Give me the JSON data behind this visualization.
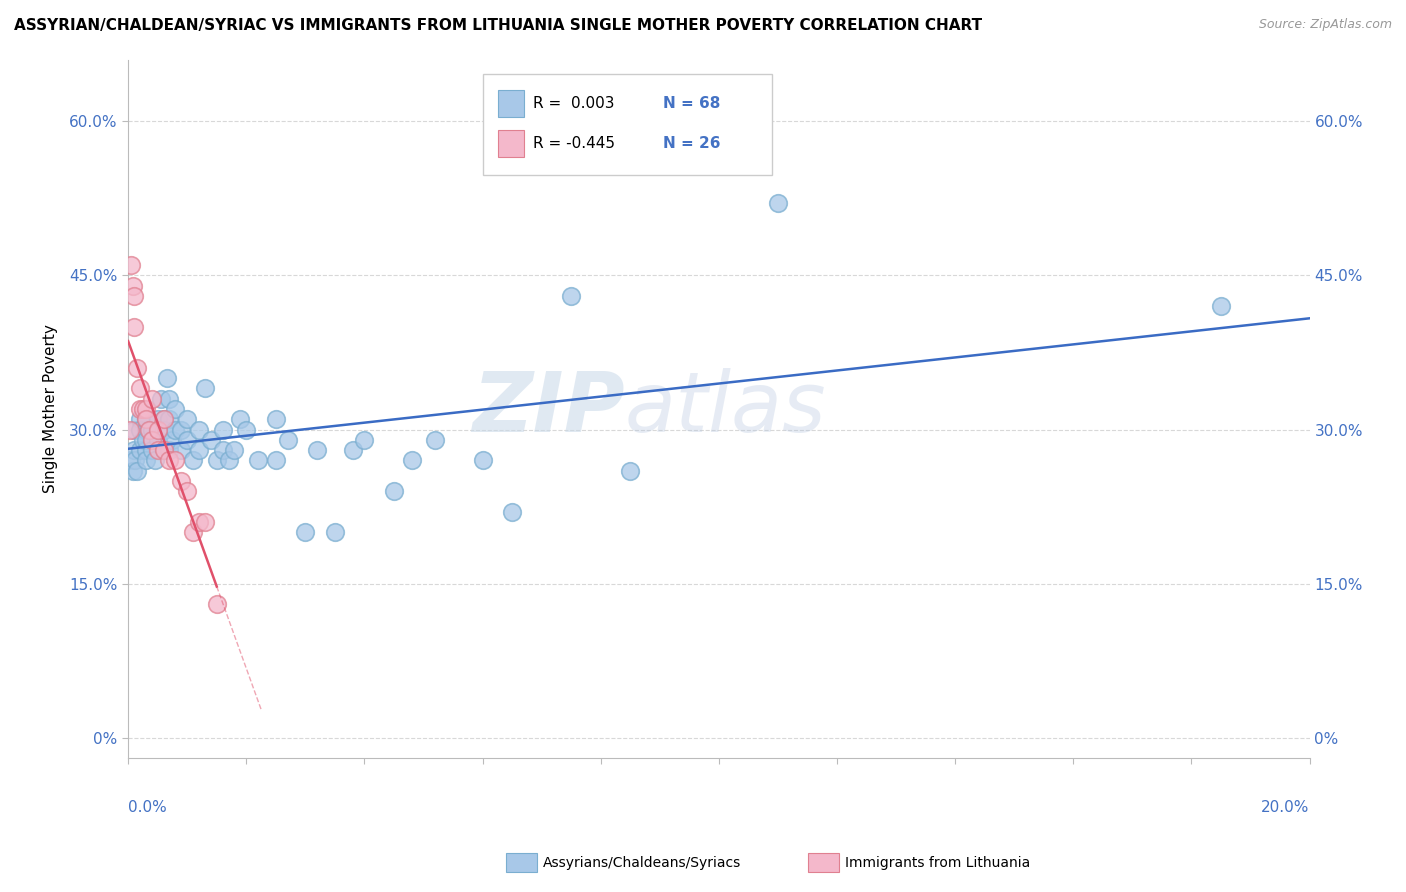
{
  "title": "ASSYRIAN/CHALDEAN/SYRIAC VS IMMIGRANTS FROM LITHUANIA SINGLE MOTHER POVERTY CORRELATION CHART",
  "source": "Source: ZipAtlas.com",
  "ylabel": "Single Mother Poverty",
  "ytick_vals": [
    0.0,
    0.15,
    0.3,
    0.45,
    0.6
  ],
  "ytick_labels": [
    "0%",
    "15.0%",
    "30.0%",
    "45.0%",
    "60.0%"
  ],
  "xlim": [
    0,
    0.2
  ],
  "ylim": [
    -0.02,
    0.66
  ],
  "series1_label": "Assyrians/Chaldeans/Syriacs",
  "series1_color": "#a8c8e8",
  "series1_edge": "#7aaed0",
  "series1_line_color": "#3a6bc4",
  "series2_label": "Immigrants from Lithuania",
  "series2_color": "#f4b8cb",
  "series2_edge": "#e08090",
  "series2_line_color": "#e0506a",
  "watermark_zip": "ZIP",
  "watermark_atlas": "atlas",
  "background_color": "#ffffff",
  "grid_color": "#d8d8d8",
  "tick_color": "#4472c4",
  "legend_R1": "R =  0.003",
  "legend_N1": "N = 68",
  "legend_R2": "R = -0.445",
  "legend_N2": "N = 26",
  "series1_x": [
    0.0005,
    0.0008,
    0.001,
    0.001,
    0.0012,
    0.0015,
    0.002,
    0.002,
    0.002,
    0.0025,
    0.003,
    0.003,
    0.003,
    0.003,
    0.003,
    0.0035,
    0.004,
    0.004,
    0.004,
    0.0045,
    0.005,
    0.005,
    0.005,
    0.0055,
    0.006,
    0.006,
    0.006,
    0.0065,
    0.007,
    0.007,
    0.007,
    0.0075,
    0.008,
    0.008,
    0.009,
    0.009,
    0.01,
    0.01,
    0.011,
    0.012,
    0.012,
    0.013,
    0.014,
    0.015,
    0.016,
    0.016,
    0.017,
    0.018,
    0.019,
    0.02,
    0.022,
    0.025,
    0.025,
    0.027,
    0.03,
    0.032,
    0.035,
    0.038,
    0.04,
    0.045,
    0.048,
    0.052,
    0.06,
    0.065,
    0.075,
    0.085,
    0.11,
    0.185
  ],
  "series1_y": [
    0.27,
    0.26,
    0.3,
    0.28,
    0.27,
    0.26,
    0.28,
    0.31,
    0.3,
    0.29,
    0.3,
    0.28,
    0.29,
    0.31,
    0.27,
    0.3,
    0.29,
    0.28,
    0.3,
    0.27,
    0.31,
    0.3,
    0.29,
    0.33,
    0.31,
    0.3,
    0.28,
    0.35,
    0.33,
    0.31,
    0.28,
    0.29,
    0.3,
    0.32,
    0.28,
    0.3,
    0.29,
    0.31,
    0.27,
    0.3,
    0.28,
    0.34,
    0.29,
    0.27,
    0.28,
    0.3,
    0.27,
    0.28,
    0.31,
    0.3,
    0.27,
    0.31,
    0.27,
    0.29,
    0.2,
    0.28,
    0.2,
    0.28,
    0.29,
    0.24,
    0.27,
    0.29,
    0.27,
    0.22,
    0.43,
    0.26,
    0.52,
    0.42
  ],
  "series2_x": [
    0.0003,
    0.0005,
    0.0008,
    0.001,
    0.001,
    0.0015,
    0.002,
    0.002,
    0.0025,
    0.003,
    0.003,
    0.0035,
    0.004,
    0.004,
    0.005,
    0.005,
    0.006,
    0.006,
    0.007,
    0.008,
    0.009,
    0.01,
    0.011,
    0.012,
    0.013,
    0.015
  ],
  "series2_y": [
    0.3,
    0.46,
    0.44,
    0.43,
    0.4,
    0.36,
    0.34,
    0.32,
    0.32,
    0.32,
    0.31,
    0.3,
    0.33,
    0.29,
    0.3,
    0.28,
    0.31,
    0.28,
    0.27,
    0.27,
    0.25,
    0.24,
    0.2,
    0.21,
    0.21,
    0.13
  ]
}
